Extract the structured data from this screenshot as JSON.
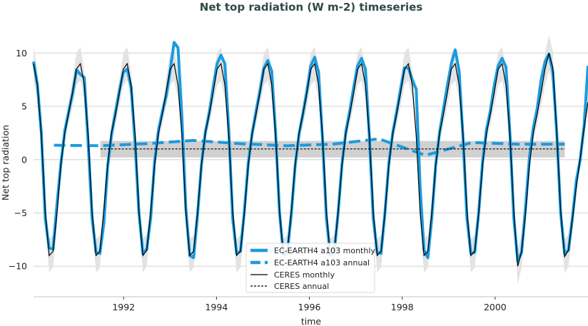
{
  "chart_data": {
    "type": "line",
    "title": "Net top radiation (W m-2) timeseries",
    "xlabel": "time",
    "ylabel": "Net top radiation",
    "xlim": [
      1990.06,
      2002.0
    ],
    "ylim": [
      -12.8,
      12.3
    ],
    "xticks": [
      1992,
      1994,
      1996,
      1998,
      2000
    ],
    "xtick_labels": [
      "1992",
      "1994",
      "1996",
      "1998",
      "2000"
    ],
    "yticks": [
      -10,
      -5,
      0,
      5,
      10
    ],
    "ytick_labels": [
      "−10",
      "−5",
      "0",
      "5",
      "10"
    ],
    "grid": "horizontal",
    "legend_placement": "bottom-center",
    "monthly_start": "1990-01",
    "monthly_end": "2001-11",
    "series": [
      {
        "name": "EC-EARTH4 a103 monthly",
        "style": "solid-thick",
        "color": "#1a9be0",
        "values": [
          9.2,
          7.0,
          2.5,
          -5.5,
          -8.3,
          -8.4,
          -4.2,
          -0.4,
          2.7,
          4.5,
          6.2,
          8.4,
          8.0,
          7.7,
          1.5,
          -5.5,
          -8.7,
          -8.8,
          -6.0,
          -0.6,
          2.4,
          4.5,
          6.5,
          8.2,
          8.5,
          6.8,
          1.5,
          -5.0,
          -8.8,
          -8.4,
          -5.5,
          -0.2,
          2.8,
          4.5,
          6.0,
          8.4,
          11.0,
          10.5,
          4.0,
          -4.5,
          -9.0,
          -9.2,
          -5.2,
          -0.5,
          2.6,
          4.4,
          6.8,
          9.0,
          9.8,
          9.0,
          2.8,
          -5.5,
          -8.8,
          -8.6,
          -4.8,
          -0.3,
          2.5,
          4.6,
          6.5,
          8.6,
          9.3,
          8.3,
          2.5,
          -5.0,
          -8.9,
          -8.7,
          -5.2,
          -0.6,
          2.4,
          4.3,
          6.4,
          8.8,
          9.6,
          8.2,
          2.0,
          -5.5,
          -9.0,
          -8.8,
          -5.0,
          -0.4,
          2.7,
          4.6,
          6.8,
          8.8,
          9.5,
          8.5,
          2.2,
          -5.5,
          -8.7,
          -8.8,
          -5.0,
          -0.3,
          2.5,
          4.5,
          6.6,
          8.6,
          8.6,
          7.5,
          6.6,
          -2.5,
          -8.5,
          -9.2,
          -5.5,
          -0.5,
          2.6,
          4.8,
          7.0,
          9.0,
          10.3,
          8.3,
          2.0,
          -5.5,
          -8.8,
          -8.7,
          -5.0,
          -0.2,
          2.8,
          4.6,
          7.0,
          8.8,
          9.5,
          8.7,
          2.5,
          -5.5,
          -9.5,
          -8.7,
          -4.5,
          0.2,
          3.0,
          4.8,
          7.5,
          9.2,
          9.9,
          8.2,
          2.5,
          -5.0,
          -8.8,
          -8.5,
          -5.5,
          -2.0,
          0.0,
          3.2,
          8.8
        ]
      },
      {
        "name": "EC-EARTH4 a103 annual",
        "style": "dashed-thick",
        "color": "#1a9be0",
        "years": [
          1990,
          1991,
          1992,
          1993,
          1994,
          1995,
          1996,
          1997,
          1998,
          1999,
          2000,
          2001
        ],
        "values": [
          1.35,
          1.3,
          1.5,
          1.8,
          1.5,
          1.3,
          1.45,
          1.95,
          0.4,
          1.6,
          1.45,
          1.45
        ]
      },
      {
        "name": "CERES monthly",
        "style": "solid-thin",
        "color": "#000000",
        "values": [
          9.0,
          7.0,
          2.3,
          -4.9,
          -9.0,
          -8.6,
          -5.0,
          -0.5,
          2.5,
          4.4,
          6.3,
          8.5,
          9.0,
          7.0,
          2.2,
          -5.0,
          -9.0,
          -8.6,
          -4.8,
          -0.4,
          2.6,
          4.3,
          6.3,
          8.5,
          9.0,
          6.9,
          2.3,
          -4.9,
          -9.0,
          -8.5,
          -5.0,
          -0.5,
          2.5,
          4.3,
          6.4,
          8.5,
          9.0,
          7.0,
          2.3,
          -4.9,
          -9.0,
          -8.6,
          -5.0,
          -0.5,
          2.5,
          4.3,
          6.3,
          8.5,
          9.0,
          7.0,
          2.3,
          -4.9,
          -9.0,
          -8.6,
          -5.0,
          -0.5,
          2.5,
          4.3,
          6.3,
          8.5,
          9.0,
          7.0,
          2.3,
          -4.9,
          -9.0,
          -8.6,
          -5.0,
          -0.5,
          2.5,
          4.3,
          6.3,
          8.5,
          9.0,
          7.0,
          2.3,
          -4.9,
          -9.0,
          -8.6,
          -5.0,
          -0.5,
          2.5,
          4.3,
          6.3,
          8.5,
          9.0,
          7.0,
          2.3,
          -4.9,
          -9.0,
          -8.6,
          -5.0,
          -0.5,
          2.5,
          4.3,
          6.3,
          8.5,
          9.0,
          7.0,
          2.3,
          -4.9,
          -9.0,
          -8.6,
          -5.0,
          -0.5,
          2.5,
          4.3,
          6.3,
          8.5,
          9.0,
          7.0,
          2.3,
          -4.9,
          -9.0,
          -8.6,
          -5.0,
          -0.5,
          2.5,
          4.3,
          6.3,
          8.5,
          9.0,
          7.0,
          2.3,
          -4.9,
          -10.0,
          -8.6,
          -5.0,
          -0.5,
          2.5,
          4.3,
          6.3,
          8.5,
          10.0,
          8.6,
          2.5,
          -4.9,
          -9.1,
          -8.5,
          -5.6,
          -2.5,
          0.1,
          3.0,
          5.4
        ]
      },
      {
        "name": "CERES annual",
        "style": "dashed-thin",
        "color": "#000000",
        "years": [
          1991,
          1992,
          1993,
          1994,
          1995,
          1996,
          1997,
          1998,
          1999,
          2000,
          2001
        ],
        "values": [
          1.0,
          1.0,
          1.0,
          1.0,
          1.0,
          1.0,
          1.0,
          1.0,
          1.0,
          1.0,
          1.0
        ]
      }
    ],
    "ceres_annual_range": [
      0.2,
      1.75
    ],
    "band_color": "#cccccc"
  }
}
